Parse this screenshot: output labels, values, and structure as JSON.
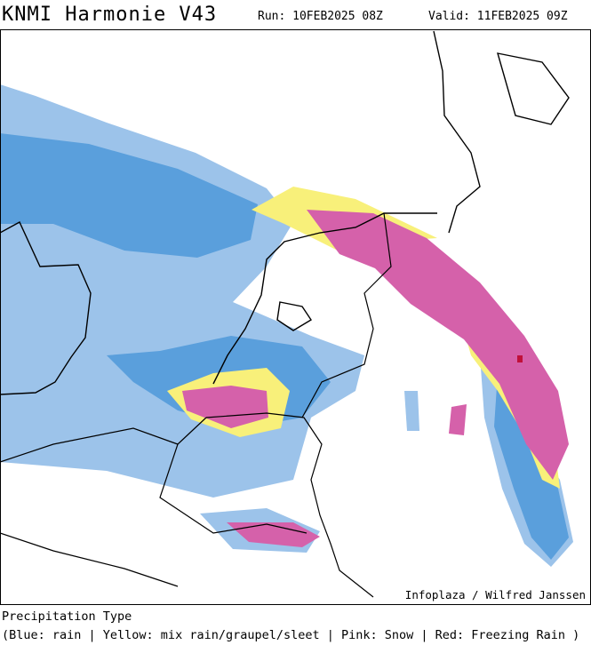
{
  "header": {
    "title": "KNMI Harmonie V43",
    "run": "Run: 10FEB2025 08Z",
    "valid": "Valid: 11FEB2025 09Z"
  },
  "map": {
    "credit": "Infoplaza / Wilfred Janssen"
  },
  "legend": {
    "title": "Precipitation Type",
    "text": "(Blue: rain | Yellow: mix rain/graupel/sleet | Pink: Snow | Red: Freezing Rain )"
  }
}
